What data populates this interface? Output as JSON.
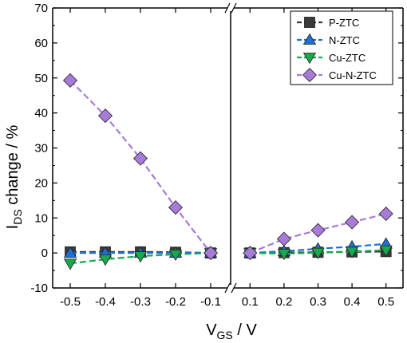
{
  "chart_data": {
    "type": "line",
    "broken_x_axis": true,
    "xlabel": {
      "main": "V",
      "sub": "GS",
      "rest": " / V"
    },
    "ylabel": {
      "main": "I",
      "sub": "DS",
      "rest": " change / %"
    },
    "ylim": [
      -10,
      70
    ],
    "yticks": [
      "-10",
      "0",
      "10",
      "20",
      "30",
      "40",
      "50",
      "60",
      "70"
    ],
    "x_left": [
      -0.5,
      -0.4,
      -0.3,
      -0.2,
      -0.1
    ],
    "x_right": [
      0.1,
      0.2,
      0.3,
      0.4,
      0.5
    ],
    "xtick_labels_left": [
      "-0.5",
      "-0.4",
      "-0.3",
      "-0.2",
      "-0.1"
    ],
    "xtick_labels_right": [
      "0.1",
      "0.2",
      "0.3",
      "0.4",
      "0.5"
    ],
    "grid": false,
    "legend_position": "top-right",
    "series": [
      {
        "name": "P-ZTC",
        "color": "#3a3a3a",
        "marker": "square",
        "values_left": [
          0.3,
          0.3,
          0.3,
          0.2,
          0.0
        ],
        "values_right": [
          0.0,
          0.1,
          0.2,
          0.3,
          0.4
        ]
      },
      {
        "name": "N-ZTC",
        "color": "#1f6fd6",
        "marker": "triangle-up",
        "values_left": [
          0.0,
          0.0,
          0.0,
          0.0,
          0.0
        ],
        "values_right": [
          0.0,
          0.5,
          1.2,
          1.8,
          2.6
        ]
      },
      {
        "name": "Cu-ZTC",
        "color": "#1aa84c",
        "marker": "triangle-down",
        "values_left": [
          -3.0,
          -1.8,
          -0.9,
          -0.4,
          0.0
        ],
        "values_right": [
          0.0,
          -0.2,
          0.1,
          0.4,
          0.8
        ]
      },
      {
        "name": "Cu-N-ZTC",
        "color": "#a87bd9",
        "marker": "diamond",
        "values_left": [
          49.3,
          39.2,
          27.0,
          13.0,
          0.0
        ],
        "values_right": [
          0.0,
          4.0,
          6.5,
          8.8,
          11.2
        ]
      }
    ]
  }
}
